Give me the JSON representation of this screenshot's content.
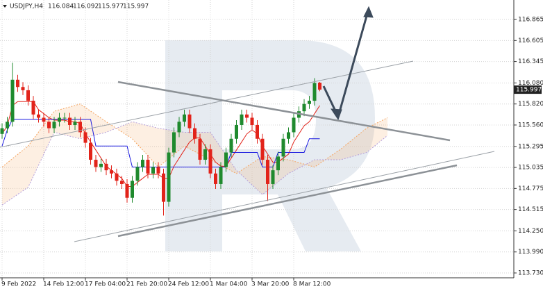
{
  "chart_data": {
    "type": "candlestick",
    "title": "USDJPY,H4",
    "categories": [
      "9 Feb 2022",
      null,
      null,
      null,
      null,
      null,
      null,
      null,
      "14 Feb 12:00",
      null,
      null,
      null,
      null,
      null,
      null,
      null,
      "17 Feb 04:00",
      null,
      null,
      null,
      null,
      null,
      null,
      null,
      "21 Feb 20:00",
      null,
      null,
      null,
      null,
      null,
      null,
      null,
      "24 Feb 12:00",
      null,
      null,
      null,
      null,
      null,
      null,
      null,
      "1 Mar 04:00",
      null,
      null,
      null,
      null,
      null,
      null,
      null,
      "3 Mar 20:00",
      null,
      null,
      null,
      null,
      null,
      null,
      null,
      "8 Mar 12:00",
      null,
      null,
      null,
      null,
      null
    ],
    "open": [
      115.45,
      115.52,
      115.6,
      116.12,
      116.03,
      115.99,
      115.86,
      115.69,
      115.65,
      115.6,
      115.52,
      115.6,
      115.65,
      115.65,
      115.56,
      115.6,
      115.47,
      115.34,
      115.13,
      115.04,
      115.08,
      115.0,
      114.96,
      114.87,
      114.83,
      114.66,
      114.87,
      115.04,
      115.13,
      114.96,
      115.04,
      114.96,
      114.61,
      115.22,
      115.47,
      115.6,
      115.69,
      115.52,
      115.39,
      115.13,
      115.26,
      114.96,
      114.83,
      115.04,
      115.22,
      115.39,
      115.56,
      115.69,
      115.65,
      115.56,
      115.39,
      115.13,
      114.83,
      115.0,
      115.17,
      115.39,
      115.47,
      115.65,
      115.73,
      115.82,
      115.86,
      116.084
    ],
    "high": [
      115.58,
      115.66,
      116.33,
      116.18,
      116.09,
      116.05,
      115.92,
      115.75,
      115.71,
      115.66,
      115.66,
      115.71,
      115.71,
      115.71,
      115.66,
      115.66,
      115.53,
      115.4,
      115.19,
      115.14,
      115.14,
      115.06,
      115.02,
      114.93,
      114.89,
      114.93,
      115.1,
      115.19,
      115.19,
      115.1,
      115.1,
      115.02,
      115.28,
      115.53,
      115.66,
      115.75,
      115.75,
      115.58,
      115.45,
      115.32,
      115.32,
      115.02,
      115.1,
      115.28,
      115.45,
      115.62,
      115.75,
      115.75,
      115.71,
      115.62,
      115.45,
      115.19,
      115.06,
      115.23,
      115.45,
      115.53,
      115.71,
      115.79,
      115.88,
      115.92,
      116.14,
      116.092
    ],
    "low": [
      115.39,
      115.46,
      115.54,
      115.97,
      115.93,
      115.8,
      115.63,
      115.59,
      115.54,
      115.46,
      115.46,
      115.54,
      115.59,
      115.5,
      115.5,
      115.41,
      115.28,
      115.07,
      114.98,
      114.98,
      114.94,
      114.9,
      114.81,
      114.77,
      114.6,
      114.6,
      114.81,
      114.98,
      114.9,
      114.9,
      114.9,
      114.44,
      114.55,
      115.16,
      115.41,
      115.54,
      115.46,
      115.33,
      115.07,
      115.07,
      114.9,
      114.77,
      114.77,
      114.98,
      115.16,
      115.33,
      115.5,
      115.59,
      115.5,
      115.33,
      115.07,
      114.62,
      114.77,
      114.94,
      115.11,
      115.33,
      115.41,
      115.59,
      115.67,
      115.76,
      115.8,
      115.977
    ],
    "close": [
      115.52,
      115.6,
      116.12,
      116.03,
      115.99,
      115.86,
      115.69,
      115.65,
      115.6,
      115.52,
      115.6,
      115.65,
      115.65,
      115.56,
      115.6,
      115.47,
      115.34,
      115.13,
      115.04,
      115.08,
      115.0,
      114.96,
      114.87,
      114.83,
      114.66,
      114.87,
      115.04,
      115.13,
      114.96,
      115.04,
      114.96,
      114.61,
      115.22,
      115.47,
      115.6,
      115.69,
      115.52,
      115.39,
      115.13,
      115.26,
      114.96,
      114.83,
      115.04,
      115.22,
      115.39,
      115.56,
      115.69,
      115.65,
      115.56,
      115.39,
      115.13,
      114.83,
      115.0,
      115.17,
      115.39,
      115.47,
      115.65,
      115.73,
      115.82,
      115.86,
      116.08,
      115.997
    ],
    "up_color": "#1f8a2e",
    "down_color": "#e2231a",
    "lines": [
      {
        "color": "#e2231a",
        "values": [
          115.45,
          115.55,
          115.8,
          115.85,
          115.85,
          115.85,
          115.85,
          115.75,
          115.7,
          115.65,
          115.62,
          115.62,
          115.62,
          115.6,
          115.6,
          115.58,
          115.45,
          115.35,
          115.25,
          115.15,
          115.05,
          115.0,
          114.95,
          114.9,
          114.8,
          114.8,
          114.85,
          114.9,
          114.95,
          114.95,
          114.95,
          114.9,
          114.9,
          115.05,
          115.15,
          115.25,
          115.35,
          115.4,
          115.4,
          115.3,
          115.2,
          115.1,
          115.05,
          115.05,
          115.15,
          115.25,
          115.35,
          115.45,
          115.5,
          115.45,
          115.3,
          115.2,
          115.1,
          115.1,
          115.15,
          115.2,
          115.35,
          115.45,
          115.55,
          115.6,
          115.7,
          115.8
        ]
      },
      {
        "color": "#1a1adf",
        "values": [
          115.3,
          115.5,
          115.63,
          115.63,
          115.63,
          115.63,
          115.63,
          115.63,
          115.63,
          115.63,
          115.63,
          115.63,
          115.63,
          115.63,
          115.63,
          115.63,
          115.63,
          115.63,
          115.3,
          115.3,
          115.3,
          115.3,
          115.3,
          115.3,
          115.3,
          115.04,
          115.04,
          115.04,
          115.04,
          115.04,
          115.04,
          115.04,
          115.04,
          115.04,
          115.04,
          115.04,
          115.04,
          115.04,
          115.04,
          115.04,
          115.04,
          115.04,
          115.04,
          115.04,
          115.22,
          115.22,
          115.22,
          115.22,
          115.22,
          115.22,
          115.04,
          115.04,
          115.04,
          115.22,
          115.22,
          115.22,
          115.22,
          115.22,
          115.22,
          115.39,
          115.39,
          115.39
        ]
      }
    ],
    "cloud": {
      "x": [
        0,
        5,
        10,
        15,
        20,
        25,
        30,
        35,
        40,
        45,
        50,
        55,
        60,
        65,
        70,
        74
      ],
      "span_a": [
        115.04,
        115.3,
        115.73,
        115.82,
        115.6,
        115.39,
        115.04,
        115.3,
        115.13,
        114.96,
        115.17,
        115.13,
        115.04,
        115.26,
        115.52,
        115.65
      ],
      "span_b": [
        114.57,
        114.79,
        115.47,
        115.39,
        115.47,
        115.6,
        115.52,
        115.47,
        115.47,
        115.0,
        114.7,
        114.96,
        115.13,
        115.13,
        115.22,
        115.43
      ],
      "color_a": "#f4a460",
      "color_b": "#b39ddb"
    },
    "ylim": [
      113.67,
      117.106
    ],
    "yticks": [
      {
        "value": 113.73,
        "label": "113.730"
      },
      {
        "value": 113.99,
        "label": "113.990"
      },
      {
        "value": 114.25,
        "label": "114.250"
      },
      114.515,
      114.775,
      115.035,
      115.295,
      {
        "value": 115.56,
        "label": "115.560"
      },
      {
        "value": 115.82,
        "label": "115.820"
      },
      {
        "value": 116.08,
        "label": "116.080"
      },
      116.345,
      116.605,
      116.865
    ],
    "grid": true
  }
}
